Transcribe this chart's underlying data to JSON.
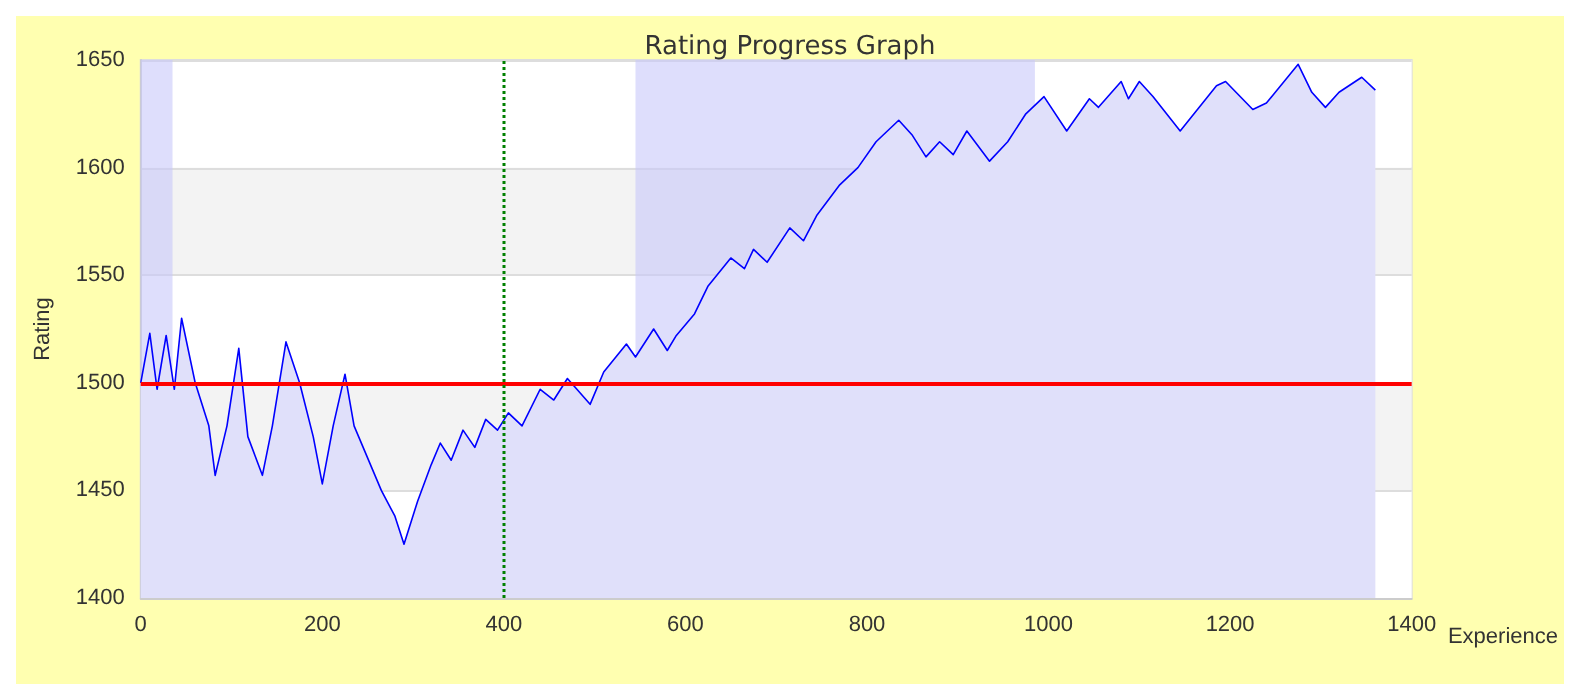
{
  "chart_data": {
    "type": "area",
    "title": "Rating Progress Graph",
    "xlabel": "Experience",
    "ylabel": "Rating",
    "x": [
      0,
      10,
      18,
      28,
      37,
      45,
      60,
      75,
      82,
      95,
      108,
      118,
      134,
      145,
      160,
      175,
      190,
      200,
      212,
      225,
      235,
      255,
      265,
      280,
      290,
      305,
      320,
      330,
      342,
      355,
      368,
      380,
      393,
      405,
      420,
      440,
      455,
      470,
      495,
      510,
      535,
      545,
      565,
      580,
      590,
      610,
      625,
      650,
      665,
      675,
      690,
      715,
      730,
      745,
      770,
      790,
      810,
      835,
      850,
      865,
      880,
      895,
      910,
      935,
      955,
      975,
      995,
      1020,
      1045,
      1055,
      1080,
      1088,
      1100,
      1115,
      1145,
      1185,
      1195,
      1225,
      1240,
      1275,
      1290,
      1305,
      1320,
      1345,
      1360
    ],
    "series": [
      {
        "color": "#0000ff",
        "values": [
          1500,
          1523,
          1497,
          1522,
          1497,
          1530,
          1500,
          1480,
          1457,
          1480,
          1516,
          1475,
          1457,
          1480,
          1519,
          1500,
          1475,
          1453,
          1480,
          1504,
          1480,
          1460,
          1450,
          1438,
          1425,
          1445,
          1462,
          1472,
          1464,
          1478,
          1470,
          1483,
          1478,
          1486,
          1480,
          1497,
          1492,
          1502,
          1490,
          1505,
          1518,
          1512,
          1525,
          1515,
          1522,
          1532,
          1545,
          1558,
          1553,
          1562,
          1556,
          1572,
          1566,
          1578,
          1592,
          1600,
          1612,
          1622,
          1615,
          1605,
          1612,
          1606,
          1617,
          1603,
          1612,
          1625,
          1633,
          1617,
          1632,
          1628,
          1640,
          1632,
          1640,
          1633,
          1617,
          1638,
          1640,
          1627,
          1630,
          1648,
          1635,
          1628,
          1635,
          1642,
          1636
        ]
      }
    ],
    "xlim": [
      0,
      1400
    ],
    "xticks": [
      0,
      200,
      400,
      600,
      800,
      1000,
      1200,
      1400
    ],
    "ylim": [
      1400,
      1650
    ],
    "yticks": [
      1400,
      1450,
      1500,
      1550,
      1600,
      1650
    ],
    "grid": "y",
    "marker": "none",
    "line_style": "solid",
    "ref_lines": [
      {
        "axis": "y",
        "value": 1500,
        "color": "#ff0000",
        "line_style": "solid"
      },
      {
        "axis": "x",
        "value": 400,
        "color": "#008000",
        "line_style": "dotted"
      }
    ],
    "bands": [
      {
        "axis": "x",
        "from": 0,
        "to": 35,
        "color": "#c8c8fa"
      },
      {
        "axis": "x",
        "from": 545,
        "to": 985,
        "color": "#c8c8fa"
      }
    ]
  }
}
